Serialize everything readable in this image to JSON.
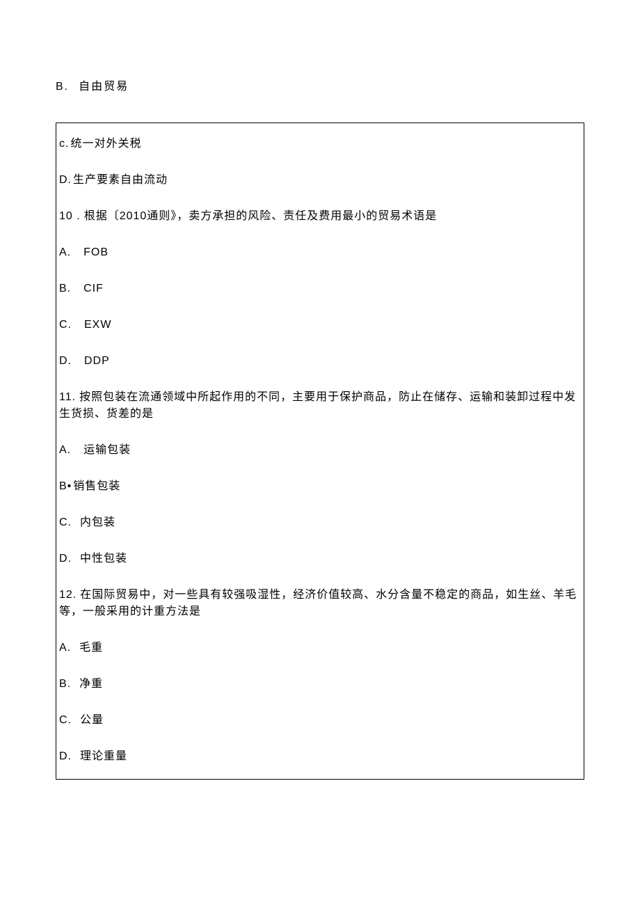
{
  "outer": {
    "optB": {
      "label": "B.",
      "text": "自由贸易"
    }
  },
  "box": {
    "optC": {
      "label": "c.",
      "text": "统一对外关税"
    },
    "optD": {
      "label": "D.",
      "text": "生产要素自由流动"
    },
    "q10": {
      "num": "10 .",
      "text_before": "根据〔",
      "latin": "2010",
      "text_after": "通则》，卖方承担的风险、责任及费用最小的贸易术语是",
      "a": {
        "label": "A.",
        "text": "FOB"
      },
      "b": {
        "label": "B.",
        "text": "CIF"
      },
      "c": {
        "label": "C.",
        "text": "EXW"
      },
      "d": {
        "label": "D.",
        "text": "DDP"
      }
    },
    "q11": {
      "num": "11.",
      "text": "按照包装在流通领域中所起作用的不同，主要用于保护商品，防止在储存、运输和装卸过程中发生货损、货差的是",
      "a": {
        "label": "A.",
        "text": "运输包装"
      },
      "b": {
        "label": "B•",
        "text": "销售包装"
      },
      "c": {
        "label": "C.",
        "text": "内包装"
      },
      "d": {
        "label": "D.",
        "text": "中性包装"
      }
    },
    "q12": {
      "num": "12.",
      "text": "在国际贸易中，对一些具有较强吸湿性，经济价值较高、水分含量不稳定的商品，如生丝、羊毛等，一般采用的计重方法是",
      "a": {
        "label": "A.",
        "text": "毛重"
      },
      "b": {
        "label": "B.",
        "text": "净重"
      },
      "c": {
        "label": "C.",
        "text": "公量"
      },
      "d": {
        "label": "D.",
        "text": "理论重量"
      }
    }
  }
}
